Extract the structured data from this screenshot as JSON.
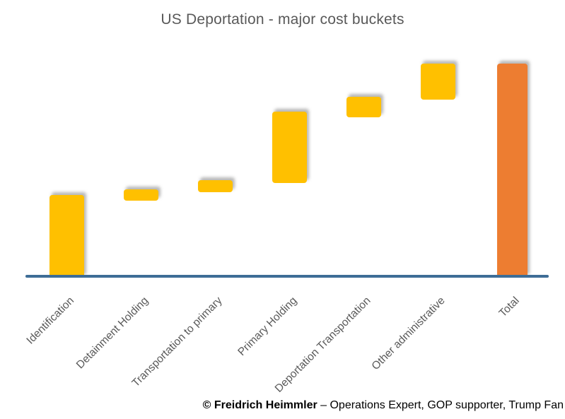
{
  "title": "US Deportation - major cost buckets",
  "caption": {
    "author": "© Freidrich Heimmler",
    "description": " – Operations Expert, GOP supporter, Trump Fan"
  },
  "colors": {
    "increment_bar": "#FFC000",
    "total_bar": "#ED7D31",
    "axis_line": "#3E6D96",
    "title_text": "#595959",
    "axis_label_text": "#595959",
    "caption_text": "#000000"
  },
  "chart_data": {
    "type": "waterfall",
    "title": "US Deportation - major cost buckets",
    "categories": [
      "Identification",
      "Detainment Holding",
      "Transportation to primary",
      "Primary Holding",
      "Deportation Transportation",
      "Other administrative",
      "Total"
    ],
    "series": [
      {
        "name": "Identification",
        "role": "increment",
        "start": 0,
        "end": 38.5
      },
      {
        "name": "Detainment Holding",
        "role": "increment",
        "start": 35.8,
        "end": 41.1
      },
      {
        "name": "Transportation to primary",
        "role": "increment",
        "start": 39.7,
        "end": 45.4
      },
      {
        "name": "Primary Holding",
        "role": "increment",
        "start": 44.0,
        "end": 77.5
      },
      {
        "name": "Deportation Transportation",
        "role": "increment",
        "start": 74.8,
        "end": 84.4
      },
      {
        "name": "Other administrative",
        "role": "increment",
        "start": 83.1,
        "end": 100
      },
      {
        "name": "Total",
        "role": "total",
        "start": 0,
        "end": 100
      }
    ],
    "value_unit": "percent of total (estimated; no value axis shown)",
    "axis": {
      "value_axis_visible": false,
      "category_axis_visible": true,
      "range": [
        0,
        100
      ],
      "gridlines": false
    },
    "legend": null
  }
}
